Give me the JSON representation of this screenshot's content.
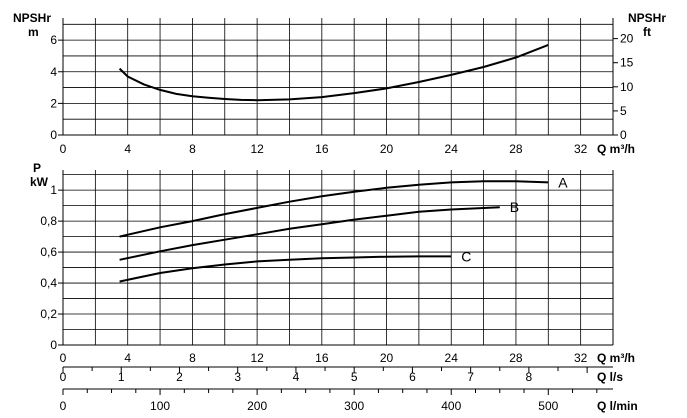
{
  "chart_data": [
    {
      "type": "line",
      "title": "",
      "ylabel_left": "NPSHr",
      "ylabel_left_unit": "m",
      "ylabel_right": "NPSHr",
      "ylabel_right_unit": "ft",
      "xlabel": "Q m³/h",
      "xlim": [
        0,
        34
      ],
      "ylim": [
        0,
        7.4
      ],
      "xticks": [
        "0",
        "4",
        "8",
        "12",
        "16",
        "20",
        "24",
        "28",
        "32"
      ],
      "xticks_values": [
        0,
        4,
        8,
        12,
        16,
        20,
        24,
        28,
        32
      ],
      "yticks": [
        "0",
        "2",
        "4",
        "6"
      ],
      "yticks_values": [
        0,
        2,
        4,
        6
      ],
      "yticks_right": [
        "0",
        "5",
        "10",
        "15",
        "20"
      ],
      "yticks_right_values": [
        0,
        5,
        10,
        15,
        20
      ],
      "grid": true,
      "series": [
        {
          "name": "",
          "x": [
            3.5,
            4,
            5,
            6,
            7,
            8,
            9,
            10,
            11,
            12,
            14,
            16,
            18,
            20,
            22,
            24,
            26,
            28,
            30
          ],
          "y": [
            4.2,
            3.7,
            3.2,
            2.85,
            2.6,
            2.45,
            2.35,
            2.28,
            2.22,
            2.2,
            2.25,
            2.4,
            2.65,
            2.95,
            3.35,
            3.8,
            4.3,
            4.9,
            5.7
          ]
        }
      ]
    },
    {
      "type": "line",
      "title": "",
      "ylabel": "P",
      "ylabel_unit": "kW",
      "xlim": [
        0,
        34
      ],
      "ylim": [
        0,
        1.13
      ],
      "yticks": [
        "0",
        "0,2",
        "0,4",
        "0,6",
        "0,8",
        "1"
      ],
      "yticks_values": [
        0,
        0.2,
        0.4,
        0.6,
        0.8,
        1.0
      ],
      "grid": true,
      "series": [
        {
          "name": "A",
          "x": [
            3.5,
            6,
            8,
            10,
            12,
            14,
            16,
            18,
            20,
            22,
            24,
            26,
            28,
            30
          ],
          "y": [
            0.7,
            0.76,
            0.8,
            0.845,
            0.885,
            0.925,
            0.96,
            0.99,
            1.015,
            1.035,
            1.05,
            1.057,
            1.058,
            1.05
          ]
        },
        {
          "name": "B",
          "x": [
            3.5,
            6,
            8,
            10,
            12,
            14,
            16,
            18,
            20,
            22,
            24,
            27
          ],
          "y": [
            0.55,
            0.605,
            0.645,
            0.68,
            0.715,
            0.75,
            0.78,
            0.81,
            0.835,
            0.86,
            0.875,
            0.89
          ]
        },
        {
          "name": "C",
          "x": [
            3.5,
            6,
            8,
            10,
            12,
            14,
            16,
            18,
            20,
            22,
            24
          ],
          "y": [
            0.41,
            0.465,
            0.495,
            0.52,
            0.54,
            0.55,
            0.56,
            0.565,
            0.57,
            0.572,
            0.572
          ]
        }
      ]
    }
  ],
  "axes": {
    "q_m3h_label": "Q m³/h",
    "q_ls_label": "Q l/s",
    "q_lmin_label": "Q l/min",
    "q_m3h_ticks": [
      "0",
      "4",
      "8",
      "12",
      "16",
      "20",
      "24",
      "28",
      "32"
    ],
    "q_m3h_values": [
      0,
      4,
      8,
      12,
      16,
      20,
      24,
      28,
      32
    ],
    "q_ls_ticks": [
      "0",
      "1",
      "2",
      "3",
      "4",
      "5",
      "6",
      "7",
      "8"
    ],
    "q_ls_values": [
      0,
      1,
      2,
      3,
      4,
      5,
      6,
      7,
      8
    ],
    "q_lmin_ticks": [
      "0",
      "100",
      "200",
      "300",
      "400",
      "500"
    ],
    "q_lmin_values": [
      0,
      100,
      200,
      300,
      400,
      500
    ]
  }
}
